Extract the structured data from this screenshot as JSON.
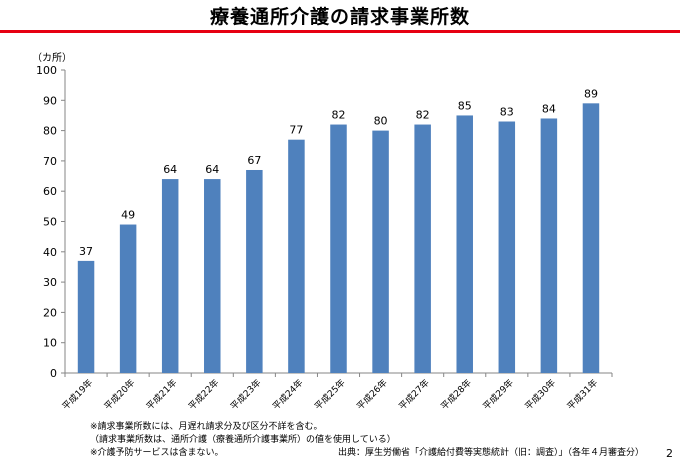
{
  "slide": {
    "title": "療養通所介護の請求事業所数",
    "page_number": "2",
    "accent_color": "#e60012"
  },
  "chart_data": {
    "type": "bar",
    "unit_label": "（カ所）",
    "categories": [
      "平成19年",
      "平成20年",
      "平成21年",
      "平成22年",
      "平成23年",
      "平成24年",
      "平成25年",
      "平成26年",
      "平成27年",
      "平成28年",
      "平成29年",
      "平成30年",
      "平成31年"
    ],
    "values": [
      37,
      49,
      64,
      64,
      67,
      77,
      82,
      80,
      82,
      85,
      83,
      84,
      89
    ],
    "ylim": [
      0,
      100
    ],
    "yticks": [
      0,
      10,
      20,
      30,
      40,
      50,
      60,
      70,
      80,
      90,
      100
    ],
    "bar_color": "#4f81bd",
    "grid": false,
    "data_labels": true
  },
  "footnotes": [
    "※請求事業所数には、月遅れ請求分及び区分不詳を含む。",
    "（請求事業所数は、通所介護（療養通所介護事業所）の値を使用している）",
    "※介護予防サービスは含まない。"
  ],
  "source": "出典：厚生労働省「介護給付費等実態統計（旧：調査）」（各年４月審査分）"
}
